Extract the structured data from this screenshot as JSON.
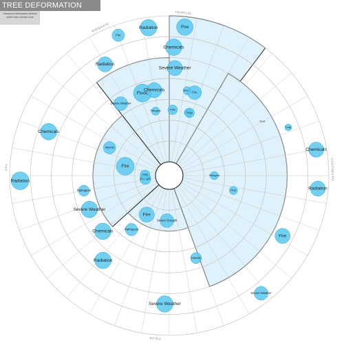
{
  "title": "TREE DEFORMATION VISUALIZATION",
  "subtitle": "Hardwood deformation defined within each climate zone",
  "colors": {
    "bubble_fill": "#5cc8ef",
    "bubble_stroke": "#2fa8d8",
    "highlight_fill": "#dff2fb",
    "highlight_stroke": "#222222",
    "ring": "#b9b9b9"
  },
  "chart_data": {
    "type": "radial bubble",
    "zones": [
      {
        "name": "TROPICAL",
        "label_angle": 5
      },
      {
        "name": "CONTINENTAL",
        "label_angle": 88
      },
      {
        "name": "POLAR",
        "label_angle": 185
      },
      {
        "name": "DRY",
        "label_angle": 273
      },
      {
        "name": "MODERATE",
        "label_angle": 335
      }
    ],
    "ring_count": 7,
    "highlight": [
      {
        "from_angle": 0,
        "to_angle": 37,
        "ring": 7
      },
      {
        "from_angle": 322,
        "to_angle": 360,
        "ring": 5
      },
      {
        "from_angle": 30,
        "to_angle": 160,
        "ring": 5
      },
      {
        "from_angle": 228,
        "to_angle": 322,
        "ring": 3
      },
      {
        "from_angle": 160,
        "to_angle": 228,
        "ring": 2
      }
    ],
    "bubbles": [
      {
        "label": "Fire",
        "angle": 6,
        "ring": 7,
        "size": 12
      },
      {
        "label": "Radiation",
        "angle": 352,
        "ring": 7,
        "size": 12
      },
      {
        "label": "Fire",
        "angle": 340,
        "ring": 7,
        "size": 9
      },
      {
        "label": "Radiation",
        "angle": 330,
        "ring": 6,
        "size": 11
      },
      {
        "label": "Chemicals",
        "angle": 2,
        "ring": 6,
        "size": 12
      },
      {
        "label": "Severe Weather",
        "angle": 3,
        "ring": 5,
        "size": 11
      },
      {
        "label": "Flood",
        "angle": 342,
        "ring": 4,
        "size": 13
      },
      {
        "label": "Chemicals",
        "angle": 350,
        "ring": 4,
        "size": 11
      },
      {
        "label": "Wounds",
        "angle": 12,
        "ring": 4,
        "size": 6
      },
      {
        "label": "Fire",
        "angle": 17,
        "ring": 4,
        "size": 10
      },
      {
        "label": "Severe Weather",
        "angle": 326,
        "ring": 4,
        "size": 10
      },
      {
        "label": "Insects",
        "angle": 17,
        "ring": 3,
        "size": 6
      },
      {
        "label": "Pests",
        "angle": 3,
        "ring": 3,
        "size": 7
      },
      {
        "label": "Pathogens",
        "angle": 348,
        "ring": 3,
        "size": 6
      },
      {
        "label": "Fungi",
        "angle": 18,
        "ring": 3,
        "size": 7
      },
      {
        "label": "Flood",
        "angle": 60,
        "ring": 5,
        "size": 0
      },
      {
        "label": "Chemicals",
        "angle": 80,
        "ring": 7,
        "size": 11
      },
      {
        "label": "Radiation",
        "angle": 95,
        "ring": 7,
        "size": 11
      },
      {
        "label": "Fire",
        "angle": 118,
        "ring": 6,
        "size": 11
      },
      {
        "label": "Severe Weather",
        "angle": 142,
        "ring": 7,
        "size": 10
      },
      {
        "label": "Pathogens",
        "angle": 90,
        "ring": 2,
        "size": 6
      },
      {
        "label": "Pests",
        "angle": 103,
        "ring": 3,
        "size": 6
      },
      {
        "label": "Fungi",
        "angle": 68,
        "ring": 6,
        "size": 5
      },
      {
        "label": "Fire",
        "angle": 210,
        "ring": 2,
        "size": 11
      },
      {
        "label": "Radiation",
        "angle": 218,
        "ring": 5,
        "size": 12
      },
      {
        "label": "Chemicals",
        "angle": 230,
        "ring": 4,
        "size": 12
      },
      {
        "label": "Pathogens",
        "angle": 215,
        "ring": 3,
        "size": 9
      },
      {
        "label": "Insects",
        "angle": 162,
        "ring": 4,
        "size": 8
      },
      {
        "label": "Severe Weather",
        "angle": 182,
        "ring": 6,
        "size": 12
      },
      {
        "label": "Chemicals",
        "angle": 290,
        "ring": 6,
        "size": 12
      },
      {
        "label": "Radiation",
        "angle": 268,
        "ring": 7,
        "size": 13
      },
      {
        "label": "Fire",
        "angle": 282,
        "ring": 2,
        "size": 13
      },
      {
        "label": "Severe Weather",
        "angle": 247,
        "ring": 4,
        "size": 12
      },
      {
        "label": "Pathogens",
        "angle": 260,
        "ring": 4,
        "size": 8
      },
      {
        "label": "Insects",
        "angle": 295,
        "ring": 3,
        "size": 9
      },
      {
        "label": "Drought",
        "angle": 262,
        "ring": 1,
        "size": 8
      },
      {
        "label": "Fungi",
        "angle": 272,
        "ring": 1,
        "size": 7
      },
      {
        "label": "Severe Drought",
        "angle": 183,
        "ring": 2,
        "size": 10
      }
    ]
  }
}
